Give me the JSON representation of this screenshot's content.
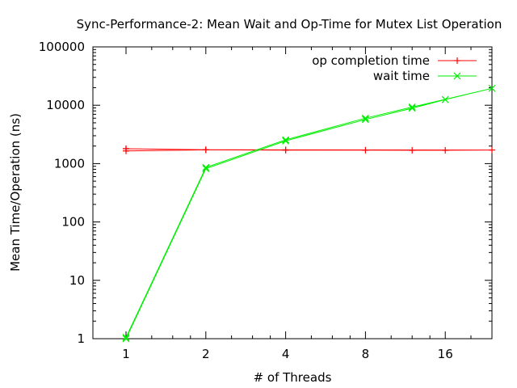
{
  "chart_data": {
    "type": "line",
    "title": "Sync-Performance-2: Mean Wait and Op-Time for Mutex List Operation",
    "xlabel": "# of Threads",
    "ylabel": "Mean Time/Operation (ns)",
    "x_scale": "log2",
    "y_scale": "log10",
    "xlim": [
      0.75,
      24
    ],
    "ylim": [
      1,
      100000
    ],
    "x_ticks": [
      {
        "value": 1,
        "label": "1"
      },
      {
        "value": 2,
        "label": "2"
      },
      {
        "value": 4,
        "label": "4"
      },
      {
        "value": 8,
        "label": "8"
      },
      {
        "value": 16,
        "label": "16"
      }
    ],
    "y_ticks": [
      {
        "value": 1,
        "label": "1"
      },
      {
        "value": 10,
        "label": "10"
      },
      {
        "value": 100,
        "label": "100"
      },
      {
        "value": 1000,
        "label": "1000"
      },
      {
        "value": 10000,
        "label": "10000"
      },
      {
        "value": 100000,
        "label": "100000"
      }
    ],
    "grid": false,
    "legend_position": "top-right",
    "series": [
      {
        "name": "op completion time",
        "color": "#ff0000",
        "marker": "plus",
        "points": [
          [
            1,
            1800
          ],
          [
            1,
            1650
          ],
          [
            2,
            1720
          ],
          [
            4,
            1700
          ],
          [
            8,
            1700
          ],
          [
            12,
            1690
          ],
          [
            16,
            1690
          ],
          [
            24,
            1710
          ],
          [
            4,
            1720
          ],
          [
            2,
            1730
          ],
          [
            1,
            1800
          ]
        ]
      },
      {
        "name": "wait time",
        "color": "#00ee00",
        "marker": "cross",
        "points": [
          [
            1,
            1.0
          ],
          [
            2,
            820
          ],
          [
            4,
            2450
          ],
          [
            8,
            5700
          ],
          [
            12,
            8900
          ],
          [
            16,
            12500
          ],
          [
            24,
            19500
          ],
          [
            12,
            9300
          ],
          [
            8,
            6000
          ],
          [
            4,
            2550
          ],
          [
            2,
            860
          ],
          [
            1,
            1.05
          ]
        ]
      }
    ]
  }
}
